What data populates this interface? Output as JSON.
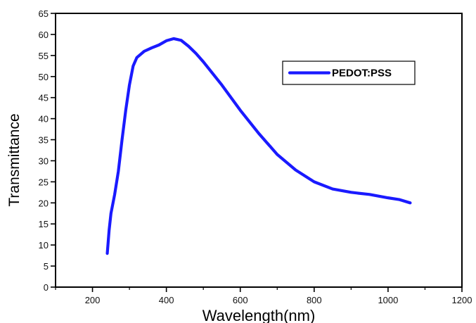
{
  "chart_data": {
    "type": "line",
    "title": "",
    "xlabel": "Wavelength(nm)",
    "ylabel": "Transmittance",
    "xlim": [
      100,
      1200
    ],
    "ylim": [
      0,
      65
    ],
    "x_ticks": [
      200,
      400,
      600,
      800,
      1000,
      1200
    ],
    "y_ticks": [
      0,
      5,
      10,
      15,
      20,
      25,
      30,
      35,
      40,
      45,
      50,
      55,
      60,
      65
    ],
    "grid": false,
    "legend_position": "top-right",
    "series": [
      {
        "name": "PEDOT:PSS",
        "color": "#1a1aff",
        "points": [
          [
            240,
            8.0
          ],
          [
            245,
            13.5
          ],
          [
            250,
            17.5
          ],
          [
            260,
            22.0
          ],
          [
            270,
            27.5
          ],
          [
            280,
            35.0
          ],
          [
            290,
            42.0
          ],
          [
            300,
            48.0
          ],
          [
            310,
            52.5
          ],
          [
            320,
            54.5
          ],
          [
            340,
            56.0
          ],
          [
            360,
            56.8
          ],
          [
            380,
            57.5
          ],
          [
            400,
            58.5
          ],
          [
            420,
            59.0
          ],
          [
            440,
            58.6
          ],
          [
            460,
            57.2
          ],
          [
            480,
            55.5
          ],
          [
            500,
            53.5
          ],
          [
            550,
            48.0
          ],
          [
            600,
            42.0
          ],
          [
            650,
            36.5
          ],
          [
            700,
            31.5
          ],
          [
            750,
            27.8
          ],
          [
            800,
            25.0
          ],
          [
            850,
            23.3
          ],
          [
            900,
            22.5
          ],
          [
            950,
            22.0
          ],
          [
            1000,
            21.2
          ],
          [
            1030,
            20.8
          ],
          [
            1060,
            20.0
          ]
        ]
      }
    ]
  }
}
